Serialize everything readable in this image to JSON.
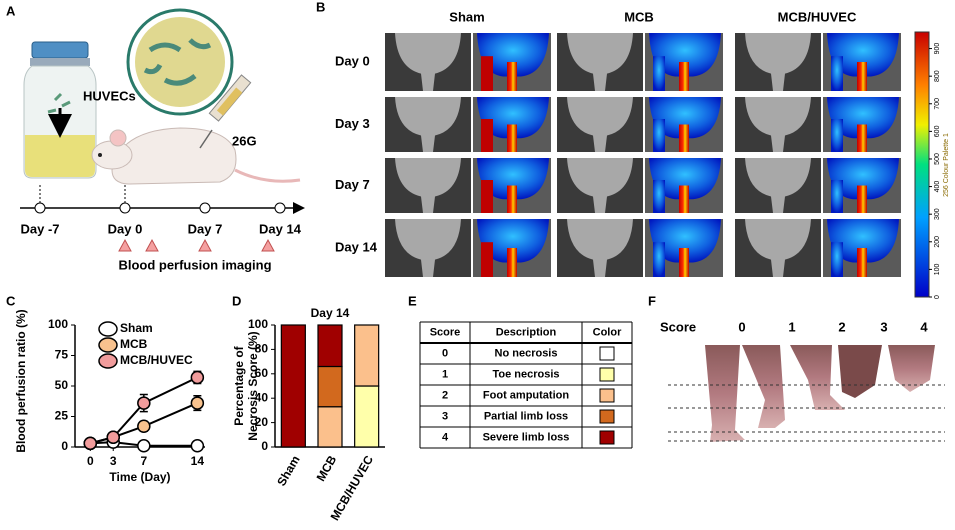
{
  "panel_labels": [
    "A",
    "B",
    "C",
    "D",
    "E",
    "F"
  ],
  "panel_a": {
    "cell_label": "HUVECs",
    "needle": "26G",
    "timeline": [
      "Day -7",
      "Day 0",
      "Day 7",
      "Day 14"
    ],
    "imaging_label": "Blood perfusion imaging"
  },
  "panel_b": {
    "columns": [
      "Sham",
      "MCB",
      "MCB/HUVEC"
    ],
    "rows": [
      "Day 0",
      "Day 3",
      "Day 7",
      "Day 14"
    ],
    "colorbar": {
      "label": "256 Colour Palette 1",
      "lim": [
        0,
        960
      ],
      "ticks": [
        0,
        100,
        200,
        300,
        400,
        500,
        600,
        700,
        800,
        900
      ]
    }
  },
  "chart_data": [
    {
      "type": "line",
      "xlabel": "Time (Day)",
      "ylabel": "Blood perfusion ratio (%)",
      "x": [
        0,
        3,
        7,
        14
      ],
      "xlim": [
        -2,
        15
      ],
      "xticks": [
        0,
        3,
        7,
        14
      ],
      "ylim": [
        0,
        100
      ],
      "yticks": [
        0,
        25,
        50,
        75,
        100
      ],
      "series": [
        {
          "name": "Sham",
          "color": "#ffffff",
          "values": [
            3,
            4,
            1,
            1
          ],
          "errors": [
            1,
            1,
            1,
            1
          ]
        },
        {
          "name": "MCB",
          "color": "#f8c28e",
          "values": [
            3,
            8,
            17,
            36
          ],
          "errors": [
            1,
            3,
            4,
            6
          ]
        },
        {
          "name": "MCB/HUVEC",
          "color": "#f19c9c",
          "values": [
            3,
            8,
            36,
            57
          ],
          "errors": [
            1,
            2,
            7,
            5
          ]
        }
      ]
    },
    {
      "type": "stacked_bar",
      "title": "Day 14",
      "ylabel": [
        "Percentage of",
        "Necrosis Score (%)"
      ],
      "categories": [
        "Sham",
        "MCB",
        "MCB/HUVEC"
      ],
      "ylim": [
        0,
        100
      ],
      "yticks": [
        0,
        20,
        40,
        60,
        80,
        100
      ],
      "series": [
        {
          "color": "#ffffaa",
          "values": [
            0,
            0,
            50
          ]
        },
        {
          "color": "#fbc08c",
          "values": [
            0,
            33,
            50
          ]
        },
        {
          "color": "#d2691e",
          "values": [
            0,
            33,
            0
          ]
        },
        {
          "color": "#a00000",
          "values": [
            100,
            34,
            0
          ]
        }
      ]
    }
  ],
  "panel_e": {
    "header": [
      "Score",
      "Description",
      "Color"
    ],
    "rows": [
      [
        "0",
        "No necrosis"
      ],
      [
        "1",
        "Toe necrosis"
      ],
      [
        "2",
        "Foot amputation"
      ],
      [
        "3",
        "Partial limb loss"
      ],
      [
        "4",
        "Severe limb loss"
      ]
    ],
    "colors": [
      "#ffffff",
      "#ffffaa",
      "#fbc08c",
      "#d2691e",
      "#a00000"
    ]
  },
  "panel_f": {
    "score_label": "Score",
    "scores": [
      "0",
      "1",
      "2",
      "3",
      "4"
    ]
  }
}
